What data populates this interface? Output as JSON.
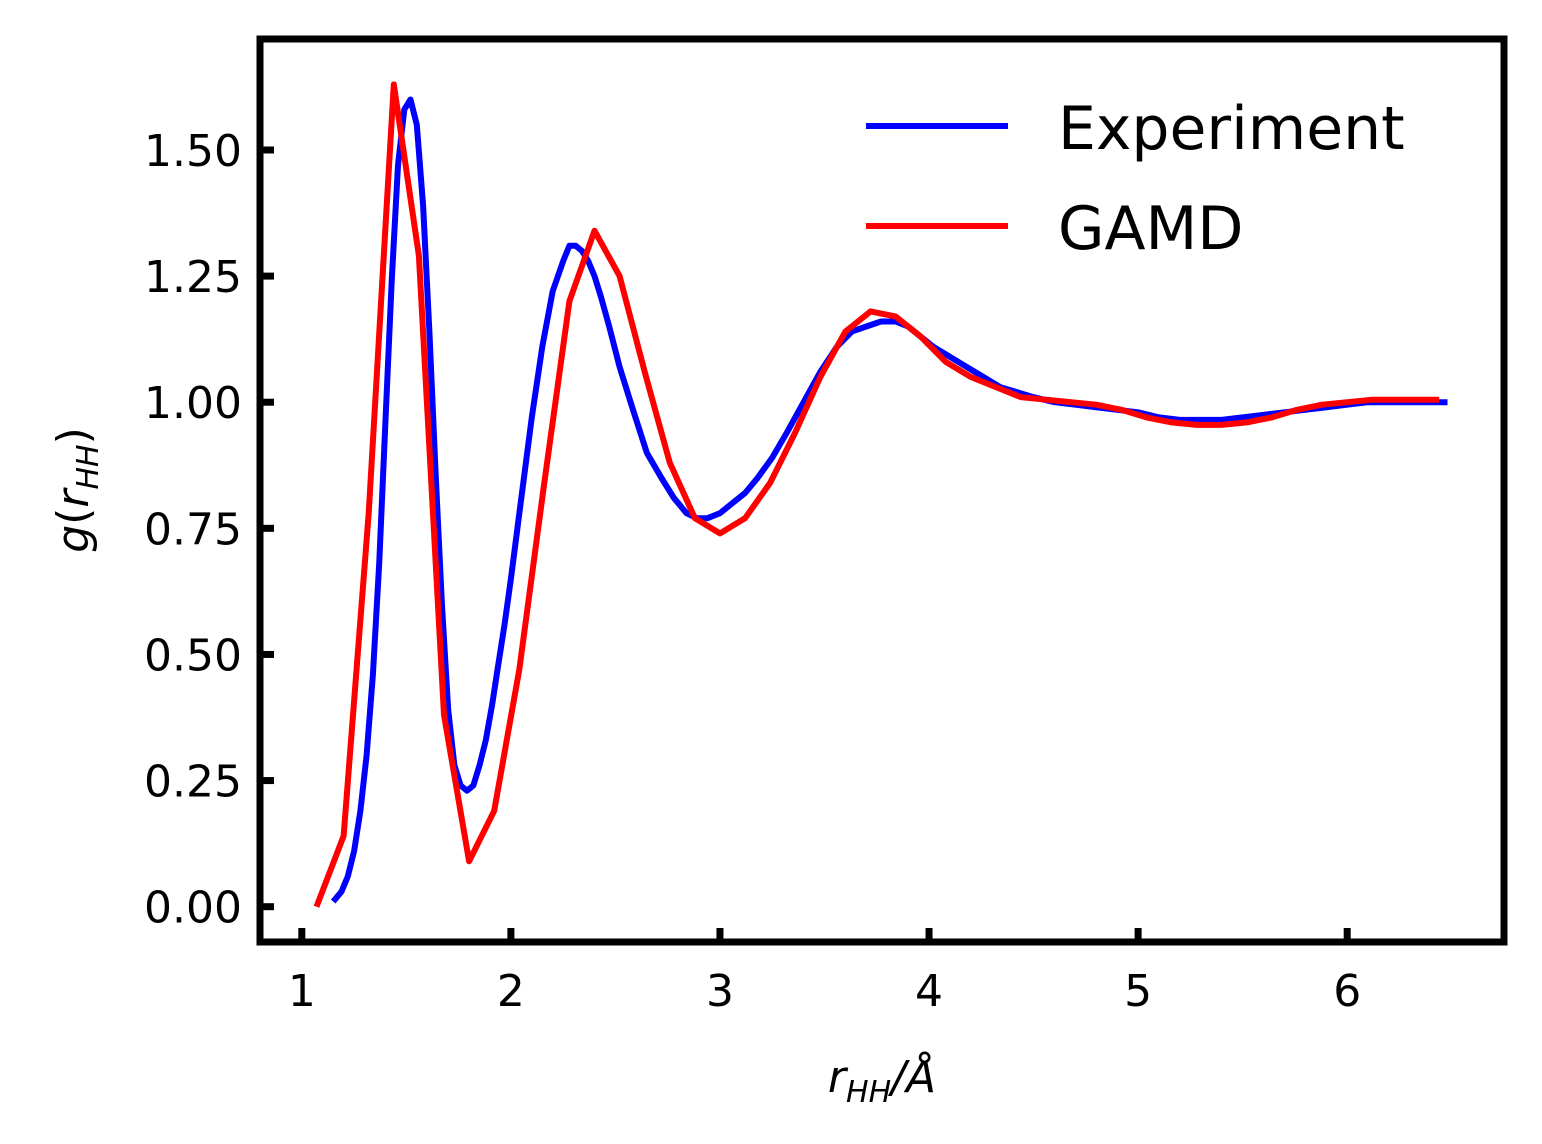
{
  "chart_data": {
    "type": "line",
    "xlabel": "r_HH/Å",
    "ylabel": "g(r_HH)",
    "xlim": [
      0.8,
      6.75
    ],
    "ylim": [
      -0.07,
      1.72
    ],
    "xticks": [
      1,
      2,
      3,
      4,
      5,
      6
    ],
    "xtick_labels": [
      "1",
      "2",
      "3",
      "4",
      "5",
      "6"
    ],
    "yticks": [
      0.0,
      0.25,
      0.5,
      0.75,
      1.0,
      1.25,
      1.5
    ],
    "ytick_labels": [
      "0.00",
      "0.25",
      "0.50",
      "0.75",
      "1.00",
      "1.25",
      "1.50"
    ],
    "grid": false,
    "legend_position": "top-right",
    "series": [
      {
        "name": "Experiment",
        "color": "#0000ff",
        "x": [
          1.15,
          1.19,
          1.22,
          1.25,
          1.28,
          1.31,
          1.34,
          1.37,
          1.4,
          1.43,
          1.46,
          1.49,
          1.52,
          1.55,
          1.58,
          1.61,
          1.64,
          1.67,
          1.7,
          1.73,
          1.76,
          1.79,
          1.82,
          1.85,
          1.88,
          1.91,
          1.94,
          1.97,
          2.0,
          2.05,
          2.1,
          2.15,
          2.2,
          2.25,
          2.28,
          2.31,
          2.34,
          2.37,
          2.4,
          2.43,
          2.47,
          2.52,
          2.58,
          2.65,
          2.72,
          2.78,
          2.84,
          2.89,
          2.94,
          3.0,
          3.06,
          3.12,
          3.18,
          3.25,
          3.32,
          3.4,
          3.48,
          3.56,
          3.63,
          3.7,
          3.77,
          3.84,
          3.9,
          3.96,
          4.02,
          4.1,
          4.18,
          4.26,
          4.34,
          4.42,
          4.5,
          4.6,
          4.7,
          4.8,
          4.9,
          5.0,
          5.1,
          5.2,
          5.3,
          5.4,
          5.5,
          5.6,
          5.7,
          5.8,
          5.9,
          6.0,
          6.1,
          6.2,
          6.3,
          6.4,
          6.48
        ],
        "y": [
          0.01,
          0.03,
          0.06,
          0.11,
          0.19,
          0.3,
          0.46,
          0.68,
          0.96,
          1.24,
          1.47,
          1.58,
          1.6,
          1.55,
          1.39,
          1.14,
          0.86,
          0.6,
          0.39,
          0.28,
          0.24,
          0.23,
          0.24,
          0.28,
          0.33,
          0.4,
          0.48,
          0.56,
          0.65,
          0.81,
          0.97,
          1.11,
          1.22,
          1.28,
          1.31,
          1.31,
          1.3,
          1.28,
          1.25,
          1.21,
          1.15,
          1.07,
          0.99,
          0.9,
          0.85,
          0.81,
          0.78,
          0.77,
          0.77,
          0.78,
          0.8,
          0.82,
          0.85,
          0.89,
          0.94,
          1.0,
          1.06,
          1.11,
          1.14,
          1.15,
          1.16,
          1.16,
          1.15,
          1.13,
          1.11,
          1.09,
          1.07,
          1.05,
          1.03,
          1.02,
          1.01,
          1.0,
          0.995,
          0.99,
          0.985,
          0.98,
          0.97,
          0.965,
          0.965,
          0.965,
          0.97,
          0.975,
          0.98,
          0.985,
          0.99,
          0.995,
          1.0,
          1.0,
          1.0,
          1.0,
          1.0
        ]
      },
      {
        "name": "GAMD",
        "color": "#ff0000",
        "x": [
          1.07,
          1.2,
          1.32,
          1.44,
          1.56,
          1.68,
          1.8,
          1.92,
          2.04,
          2.16,
          2.28,
          2.4,
          2.52,
          2.64,
          2.76,
          2.88,
          3.0,
          3.12,
          3.24,
          3.36,
          3.48,
          3.6,
          3.72,
          3.84,
          3.96,
          4.08,
          4.2,
          4.32,
          4.44,
          4.56,
          4.68,
          4.8,
          4.92,
          5.04,
          5.16,
          5.28,
          5.4,
          5.52,
          5.64,
          5.76,
          5.88,
          6.0,
          6.12,
          6.24,
          6.36,
          6.44
        ],
        "y": [
          0.0,
          0.14,
          0.78,
          1.63,
          1.29,
          0.38,
          0.09,
          0.19,
          0.47,
          0.84,
          1.2,
          1.34,
          1.25,
          1.06,
          0.88,
          0.77,
          0.74,
          0.77,
          0.84,
          0.94,
          1.05,
          1.14,
          1.18,
          1.17,
          1.13,
          1.08,
          1.05,
          1.03,
          1.01,
          1.005,
          1.0,
          0.995,
          0.985,
          0.97,
          0.96,
          0.955,
          0.955,
          0.96,
          0.97,
          0.985,
          0.995,
          1.0,
          1.005,
          1.005,
          1.005,
          1.005
        ]
      }
    ]
  }
}
